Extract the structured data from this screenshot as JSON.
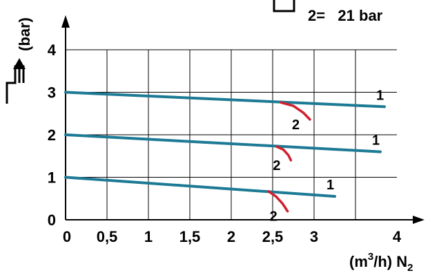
{
  "header": {
    "legend_text": "2=   21 bar"
  },
  "chart_data": {
    "type": "line",
    "xlabel_main": "(m",
    "xlabel_sup": "3",
    "xlabel_mid": "/h) N",
    "xlabel_sub": "2",
    "ylabel": "(bar)",
    "x_ticks": [
      "0",
      "0,5",
      "1",
      "1,5",
      "2",
      "2,5",
      "3",
      "4"
    ],
    "y_ticks": [
      "0",
      "1",
      "2",
      "3",
      "4"
    ],
    "xlim": [
      0,
      4
    ],
    "ylim": [
      0,
      4
    ],
    "grid": true,
    "colors": {
      "series_1": "#1d7a95",
      "series_2": "#d0202e",
      "grid": "#000000"
    },
    "series": [
      {
        "name": "1",
        "x": [
          0,
          3.85
        ],
        "y": [
          3.0,
          2.66
        ]
      },
      {
        "name": "1",
        "x": [
          0,
          3.8
        ],
        "y": [
          2.0,
          1.6
        ]
      },
      {
        "name": "1",
        "x": [
          0,
          3.25
        ],
        "y": [
          1.0,
          0.55
        ]
      },
      {
        "name": "2",
        "x": [
          2.6,
          2.75,
          2.87,
          2.95
        ],
        "y": [
          2.76,
          2.68,
          2.52,
          2.36
        ]
      },
      {
        "name": "2",
        "x": [
          2.55,
          2.63,
          2.69,
          2.72
        ],
        "y": [
          1.72,
          1.65,
          1.52,
          1.4
        ]
      },
      {
        "name": "2",
        "x": [
          2.45,
          2.54,
          2.62,
          2.68
        ],
        "y": [
          0.67,
          0.55,
          0.38,
          0.2
        ]
      }
    ]
  }
}
